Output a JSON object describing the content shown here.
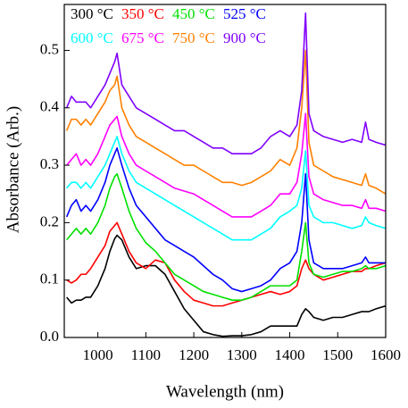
{
  "chart_data": {
    "type": "line",
    "x_label": "Wavelength (nm)",
    "y_label": "Absorbance (Arb.)",
    "x": [
      935,
      945,
      955,
      965,
      975,
      985,
      1000,
      1015,
      1025,
      1035,
      1040,
      1050,
      1065,
      1080,
      1100,
      1120,
      1140,
      1160,
      1180,
      1200,
      1220,
      1240,
      1260,
      1280,
      1300,
      1320,
      1340,
      1360,
      1380,
      1400,
      1415,
      1425,
      1433,
      1440,
      1450,
      1470,
      1490,
      1510,
      1530,
      1550,
      1558,
      1565,
      1580,
      1600
    ],
    "xlim": [
      930,
      1600
    ],
    "xticks": [
      1000,
      1100,
      1200,
      1300,
      1400,
      1500,
      1600
    ],
    "ylim": [
      0,
      0.58
    ],
    "yticks": [
      {
        "value": 0,
        "label": "0.0"
      },
      0.1,
      0.2,
      0.3,
      0.4,
      0.5
    ],
    "series": [
      {
        "name": "300 °C",
        "color": "#000000",
        "values": [
          0.07,
          0.06,
          0.065,
          0.065,
          0.07,
          0.07,
          0.09,
          0.12,
          0.15,
          0.172,
          0.178,
          0.17,
          0.14,
          0.12,
          0.125,
          0.125,
          0.11,
          0.08,
          0.05,
          0.03,
          0.01,
          0.005,
          0.002,
          0.003,
          0.003,
          0.005,
          0.01,
          0.02,
          0.02,
          0.02,
          0.02,
          0.04,
          0.05,
          0.045,
          0.035,
          0.03,
          0.035,
          0.035,
          0.04,
          0.045,
          0.045,
          0.045,
          0.05,
          0.055
        ]
      },
      {
        "name": "350 °C",
        "color": "#ff0000",
        "values": [
          0.1,
          0.095,
          0.1,
          0.11,
          0.11,
          0.12,
          0.14,
          0.16,
          0.185,
          0.195,
          0.2,
          0.18,
          0.15,
          0.13,
          0.12,
          0.135,
          0.13,
          0.1,
          0.08,
          0.065,
          0.06,
          0.055,
          0.055,
          0.06,
          0.065,
          0.07,
          0.075,
          0.08,
          0.075,
          0.08,
          0.09,
          0.12,
          0.135,
          0.12,
          0.11,
          0.1,
          0.105,
          0.11,
          0.115,
          0.115,
          0.12,
          0.12,
          0.125,
          0.13
        ]
      },
      {
        "name": "450 °C",
        "color": "#00e000",
        "values": [
          0.17,
          0.18,
          0.19,
          0.18,
          0.19,
          0.18,
          0.2,
          0.23,
          0.26,
          0.28,
          0.285,
          0.26,
          0.22,
          0.19,
          0.165,
          0.15,
          0.13,
          0.11,
          0.1,
          0.09,
          0.08,
          0.075,
          0.07,
          0.065,
          0.065,
          0.07,
          0.08,
          0.09,
          0.09,
          0.09,
          0.1,
          0.15,
          0.2,
          0.13,
          0.11,
          0.105,
          0.11,
          0.115,
          0.115,
          0.12,
          0.125,
          0.12,
          0.12,
          0.125
        ]
      },
      {
        "name": "525 °C",
        "color": "#0000ff",
        "values": [
          0.21,
          0.23,
          0.24,
          0.22,
          0.23,
          0.22,
          0.24,
          0.27,
          0.3,
          0.32,
          0.33,
          0.3,
          0.26,
          0.23,
          0.21,
          0.19,
          0.17,
          0.16,
          0.15,
          0.14,
          0.125,
          0.11,
          0.1,
          0.085,
          0.08,
          0.085,
          0.09,
          0.1,
          0.12,
          0.13,
          0.15,
          0.2,
          0.285,
          0.17,
          0.13,
          0.12,
          0.12,
          0.12,
          0.125,
          0.13,
          0.14,
          0.13,
          0.13,
          0.13
        ]
      },
      {
        "name": "600 °C",
        "color": "#00ffff",
        "values": [
          0.26,
          0.27,
          0.27,
          0.26,
          0.27,
          0.26,
          0.28,
          0.3,
          0.32,
          0.34,
          0.35,
          0.32,
          0.29,
          0.27,
          0.26,
          0.25,
          0.24,
          0.23,
          0.22,
          0.21,
          0.2,
          0.19,
          0.18,
          0.17,
          0.17,
          0.17,
          0.18,
          0.19,
          0.21,
          0.22,
          0.23,
          0.26,
          0.325,
          0.23,
          0.21,
          0.2,
          0.2,
          0.195,
          0.19,
          0.195,
          0.21,
          0.2,
          0.195,
          0.19
        ]
      },
      {
        "name": "675 °C",
        "color": "#ff00ff",
        "values": [
          0.3,
          0.31,
          0.32,
          0.3,
          0.31,
          0.3,
          0.32,
          0.35,
          0.37,
          0.38,
          0.385,
          0.35,
          0.32,
          0.3,
          0.29,
          0.28,
          0.27,
          0.26,
          0.255,
          0.25,
          0.24,
          0.23,
          0.22,
          0.21,
          0.21,
          0.21,
          0.22,
          0.23,
          0.25,
          0.25,
          0.27,
          0.32,
          0.39,
          0.28,
          0.25,
          0.24,
          0.235,
          0.23,
          0.23,
          0.225,
          0.24,
          0.225,
          0.225,
          0.22
        ]
      },
      {
        "name": "750 °C",
        "color": "#ff8000",
        "values": [
          0.36,
          0.38,
          0.38,
          0.37,
          0.38,
          0.37,
          0.39,
          0.41,
          0.43,
          0.44,
          0.455,
          0.4,
          0.37,
          0.35,
          0.34,
          0.33,
          0.32,
          0.31,
          0.3,
          0.3,
          0.29,
          0.28,
          0.27,
          0.27,
          0.265,
          0.27,
          0.28,
          0.29,
          0.31,
          0.3,
          0.33,
          0.4,
          0.5,
          0.34,
          0.3,
          0.29,
          0.28,
          0.275,
          0.27,
          0.265,
          0.285,
          0.265,
          0.26,
          0.25
        ]
      },
      {
        "name": "900 °C",
        "color": "#8000ff",
        "values": [
          0.4,
          0.42,
          0.41,
          0.41,
          0.41,
          0.4,
          0.42,
          0.44,
          0.46,
          0.48,
          0.495,
          0.44,
          0.42,
          0.4,
          0.39,
          0.38,
          0.37,
          0.36,
          0.36,
          0.35,
          0.34,
          0.33,
          0.33,
          0.32,
          0.32,
          0.32,
          0.33,
          0.35,
          0.36,
          0.35,
          0.37,
          0.43,
          0.565,
          0.39,
          0.36,
          0.35,
          0.345,
          0.34,
          0.345,
          0.34,
          0.375,
          0.345,
          0.34,
          0.335
        ]
      }
    ]
  }
}
